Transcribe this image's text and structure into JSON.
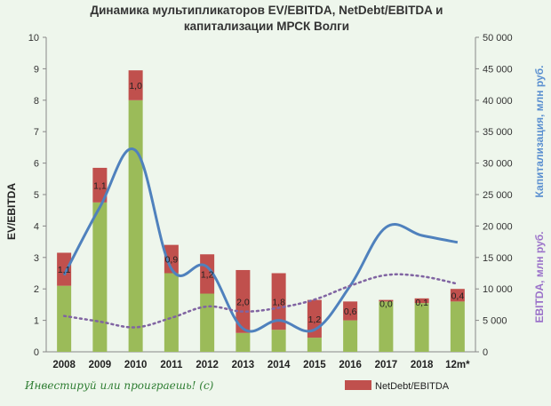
{
  "chart_data": {
    "type": "bar",
    "title_line1": "Динамика мультипликаторов EV/EBITDA, NetDebt/EBITDA и",
    "title_line2": "капитализации МРСК Волги",
    "ylabel_left": "EV/EBITDA",
    "ylabel_right_1": "Капитализация, млн руб.",
    "ylabel_right_2": "EBITDA, млн руб.",
    "categories": [
      "2008",
      "2009",
      "2010",
      "2011",
      "2012",
      "2013",
      "2014",
      "2015",
      "2016",
      "2017",
      "2018",
      "12m*"
    ],
    "ylim_left": [
      0,
      10
    ],
    "yticks_left": [
      "0",
      "1",
      "2",
      "3",
      "4",
      "5",
      "6",
      "7",
      "8",
      "9",
      "10"
    ],
    "ylim_right": [
      0,
      50000
    ],
    "yticks_right": [
      "0",
      "5 000",
      "10 000",
      "15 000",
      "20 000",
      "25 000",
      "30 000",
      "35 000",
      "40 000",
      "45 000",
      "50 000"
    ],
    "series": [
      {
        "name": "",
        "kind": "stacked-bar",
        "color": "#9bbb59",
        "values": [
          2.1,
          4.75,
          8.0,
          2.5,
          1.85,
          0.6,
          0.7,
          0.45,
          1.0,
          1.6,
          1.55,
          1.6
        ]
      },
      {
        "name": "NetDebt/EBITDA",
        "kind": "stacked-bar",
        "color": "#c0504d",
        "values": [
          1.05,
          1.1,
          0.95,
          0.9,
          1.25,
          2.0,
          1.8,
          1.2,
          0.6,
          0.05,
          0.15,
          0.4
        ],
        "labels": [
          "1,1",
          "1,1",
          "1,0",
          "0,9",
          "1,2",
          "2,0",
          "1,8",
          "1,2",
          "0,6",
          "0,0",
          "0,1",
          "0,4"
        ]
      },
      {
        "name": "",
        "kind": "line-right",
        "color": "#4f81bd",
        "values": [
          12200,
          23000,
          32000,
          13200,
          13500,
          3700,
          5000,
          3500,
          10500,
          19800,
          18500,
          17400
        ]
      },
      {
        "name": "",
        "kind": "dotted-line-right",
        "color": "#8064a2",
        "values": [
          5700,
          4800,
          3900,
          5400,
          7200,
          6400,
          7000,
          8300,
          10500,
          12200,
          12000,
          10800
        ]
      }
    ],
    "legend": [
      "NetDebt/EBITDA"
    ],
    "legend_position": "bottom-right",
    "grid": false
  },
  "watermark": "Инвестируй или проиграешь! (с)"
}
